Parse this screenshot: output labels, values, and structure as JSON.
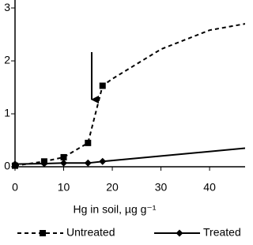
{
  "chart_data": {
    "type": "line",
    "x_label": "Hg in soil, µg g⁻¹",
    "xlim": [
      0,
      47.3
    ],
    "xticks": [
      0,
      10,
      20,
      30,
      40
    ],
    "ylim": [
      0,
      3.15
    ],
    "yticks": [
      0,
      1,
      2,
      3
    ],
    "series": [
      {
        "name": "Untreated",
        "color": "#000",
        "dash": true,
        "marker": "square",
        "x": [
          0,
          6,
          10,
          15,
          18
        ],
        "values": [
          0.02,
          0.1,
          0.18,
          0.45,
          1.53
        ],
        "curve_x": [
          0,
          6,
          10,
          15,
          18,
          20,
          30,
          40,
          47.3
        ],
        "curve_values": [
          0.02,
          0.1,
          0.18,
          0.45,
          1.53,
          1.66,
          2.22,
          2.58,
          2.7
        ]
      },
      {
        "name": "Treated",
        "color": "#000",
        "dash": false,
        "marker": "diamond",
        "x": [
          0,
          6,
          10,
          15,
          18
        ],
        "values": [
          0.05,
          0.06,
          0.07,
          0.07,
          0.1
        ],
        "curve_x": [
          0,
          6,
          10,
          15,
          18,
          47.3
        ],
        "curve_values": [
          0.05,
          0.06,
          0.07,
          0.07,
          0.1,
          0.35
        ]
      }
    ]
  }
}
